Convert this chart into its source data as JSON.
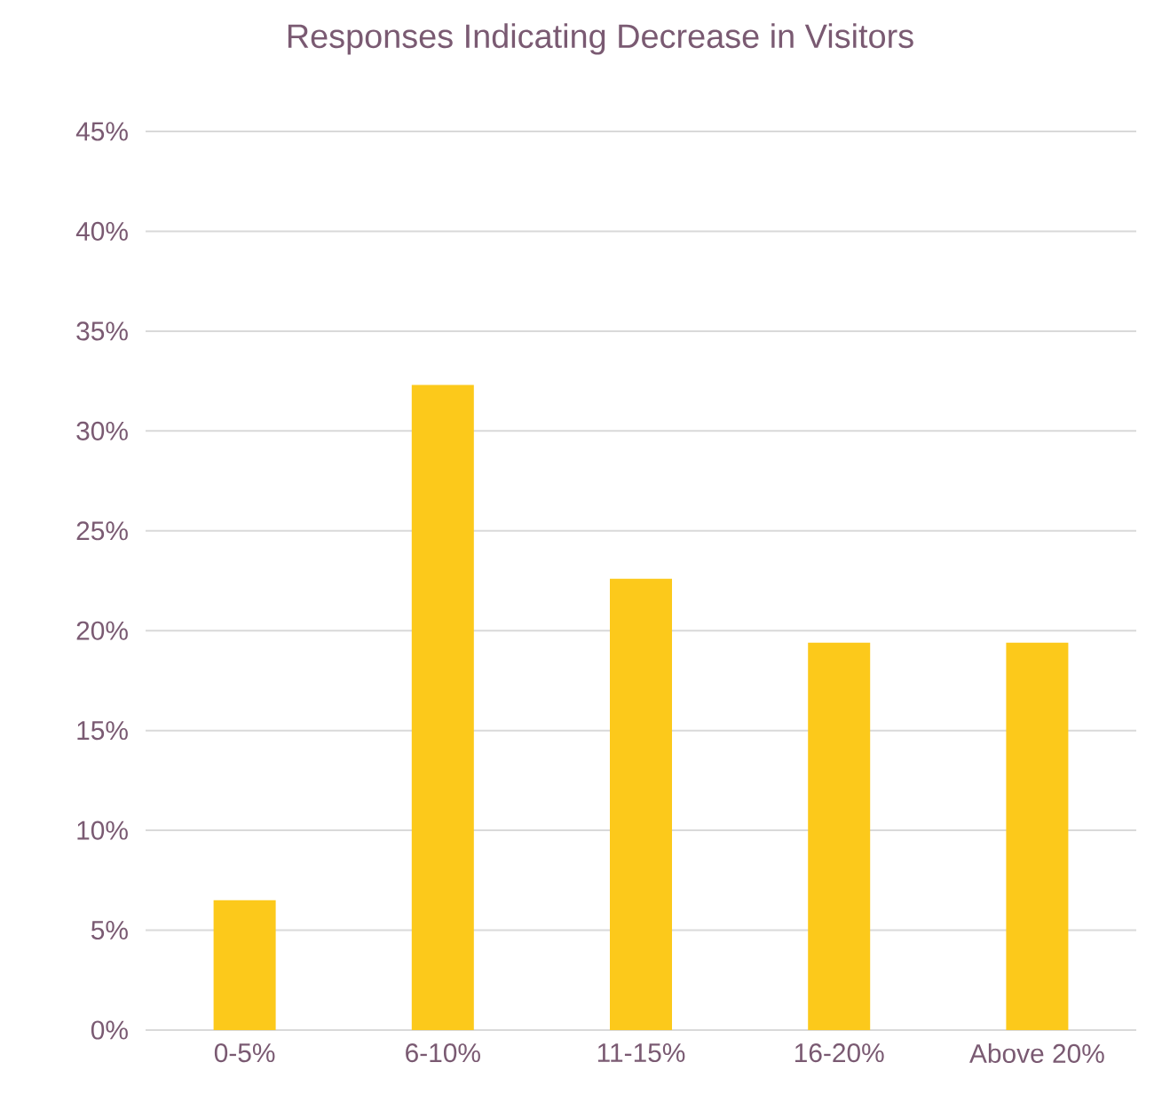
{
  "chart_data": {
    "type": "bar",
    "title": "Responses Indicating Decrease in Visitors",
    "categories": [
      "0-5%",
      "6-10%",
      "11-15%",
      "16-20%",
      "Above 20%"
    ],
    "values": [
      6.5,
      32.3,
      22.6,
      19.4,
      19.4
    ],
    "color": "#fcc91b",
    "ylim": [
      0,
      45
    ],
    "yticks": [
      {
        "value": 0,
        "label": "0%"
      },
      {
        "value": 5,
        "label": "5%"
      },
      {
        "value": 10,
        "label": "10%"
      },
      {
        "value": 15,
        "label": "15%"
      },
      {
        "value": 20,
        "label": "20%"
      },
      {
        "value": 25,
        "label": "25%"
      },
      {
        "value": 30,
        "label": "30%"
      },
      {
        "value": 35,
        "label": "35%"
      },
      {
        "value": 40,
        "label": "40%"
      },
      {
        "value": 45,
        "label": "45%"
      }
    ],
    "grid": "y"
  }
}
